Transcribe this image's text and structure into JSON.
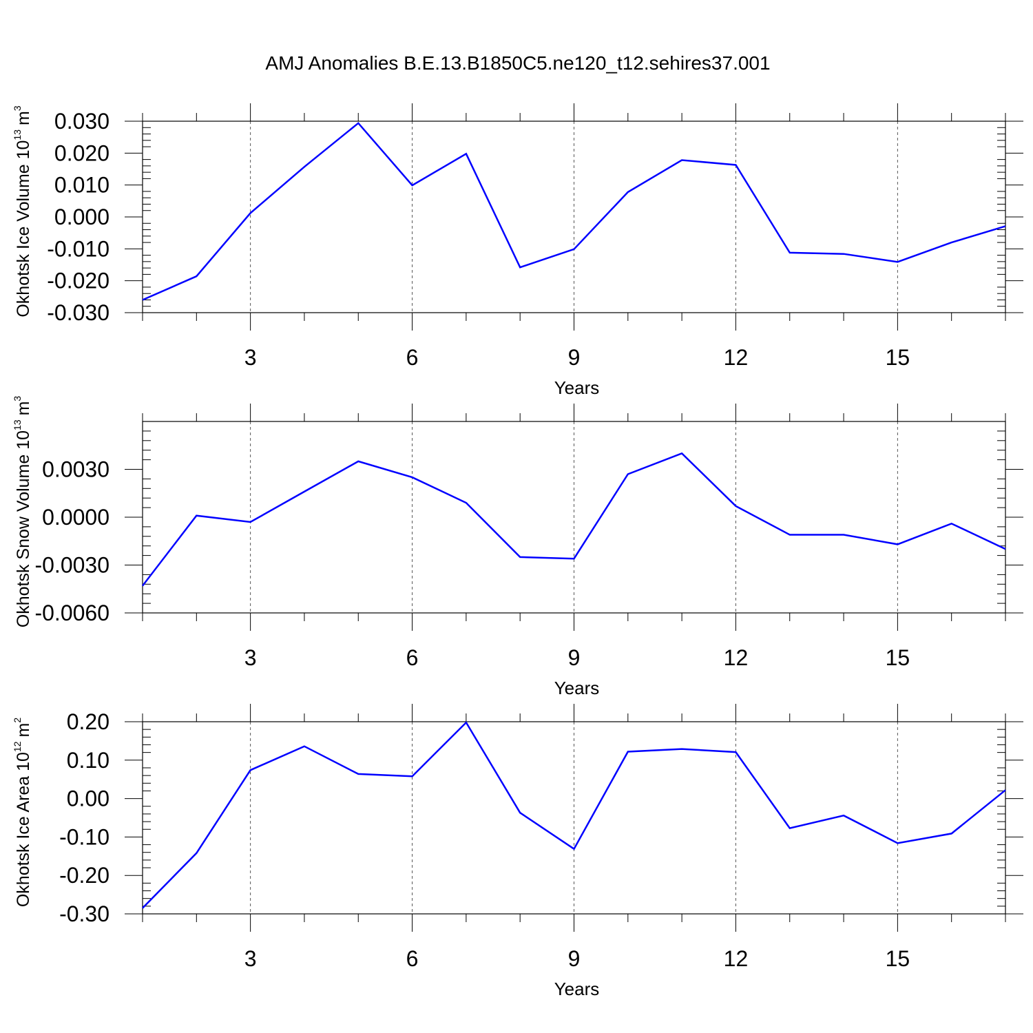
{
  "figure": {
    "title": "AMJ Anomalies B.E.13.B1850C5.ne120_t12.sehires37.001",
    "line_color": "#0000ff",
    "grid_color": "#555555"
  },
  "chart_data": [
    {
      "type": "line",
      "title": "AMJ Anomalies B.E.13.B1850C5.ne120_t12.sehires37.001",
      "xlabel": "Years",
      "ylabel": "Okhotsk Ice Volume 10",
      "ylabel_exp": "13",
      "ylabel_unit": "m",
      "ylabel_unit_exp": "3",
      "xlim": [
        1,
        17
      ],
      "ylim": [
        -0.03,
        0.03
      ],
      "x_ticks": [
        3,
        6,
        9,
        12,
        15
      ],
      "x_tick_labels": [
        "3",
        "6",
        "9",
        "12",
        "15"
      ],
      "y_ticks": [
        -0.03,
        -0.02,
        -0.01,
        0.0,
        0.01,
        0.02,
        0.03
      ],
      "y_tick_labels": [
        "-0.030",
        "-0.020",
        "-0.010",
        "0.000",
        "0.010",
        "0.020",
        "0.030"
      ],
      "grid": "vertical dashed",
      "series": [
        {
          "x": [
            1,
            2,
            3,
            4,
            5,
            6,
            7,
            8,
            9,
            10,
            11,
            12,
            13,
            14,
            15,
            16,
            17
          ],
          "values": [
            -0.026,
            -0.0186,
            0.0012,
            0.0157,
            0.0294,
            0.0099,
            0.0198,
            -0.0158,
            -0.0101,
            0.0078,
            0.0178,
            0.0163,
            -0.0112,
            -0.0116,
            -0.0141,
            -0.008,
            -0.0029
          ]
        }
      ]
    },
    {
      "type": "line",
      "xlabel": "Years",
      "ylabel": "Okhotsk Snow Volume 10",
      "ylabel_exp": "13",
      "ylabel_unit": "m",
      "ylabel_unit_exp": "3",
      "xlim": [
        1,
        17
      ],
      "ylim": [
        -0.006,
        0.006
      ],
      "x_ticks": [
        3,
        6,
        9,
        12,
        15
      ],
      "x_tick_labels": [
        "3",
        "6",
        "9",
        "12",
        "15"
      ],
      "y_ticks": [
        -0.006,
        -0.003,
        0.0,
        0.003
      ],
      "y_tick_labels": [
        "-0.0060",
        "-0.0030",
        "0.0000",
        "0.0030"
      ],
      "grid": "vertical dashed",
      "series": [
        {
          "x": [
            1,
            2,
            3,
            4,
            5,
            6,
            7,
            8,
            9,
            10,
            11,
            12,
            13,
            14,
            15,
            16,
            17
          ],
          "values": [
            -0.0043,
            0.0001,
            -0.0003,
            0.0016,
            0.0035,
            0.0025,
            0.0009,
            -0.0025,
            -0.0026,
            0.0027,
            0.004,
            0.0007,
            -0.0011,
            -0.0011,
            -0.0017,
            -0.0004,
            -0.002
          ]
        }
      ]
    },
    {
      "type": "line",
      "xlabel": "Years",
      "ylabel": "Okhotsk Ice Area 10",
      "ylabel_exp": "12",
      "ylabel_unit": "m",
      "ylabel_unit_exp": "2",
      "xlim": [
        1,
        17
      ],
      "ylim": [
        -0.3,
        0.2
      ],
      "x_ticks": [
        3,
        6,
        9,
        12,
        15
      ],
      "x_tick_labels": [
        "3",
        "6",
        "9",
        "12",
        "15"
      ],
      "y_ticks": [
        -0.3,
        -0.2,
        -0.1,
        0.0,
        0.1,
        0.2
      ],
      "y_tick_labels": [
        "-0.30",
        "-0.20",
        "-0.10",
        "0.00",
        "0.10",
        "0.20"
      ],
      "grid": "vertical dashed",
      "series": [
        {
          "x": [
            1,
            2,
            3,
            4,
            5,
            6,
            7,
            8,
            9,
            10,
            11,
            12,
            13,
            14,
            15,
            16,
            17
          ],
          "values": [
            -0.285,
            -0.142,
            0.074,
            0.136,
            0.064,
            0.058,
            0.198,
            -0.037,
            -0.131,
            0.122,
            0.129,
            0.121,
            -0.077,
            -0.044,
            -0.116,
            -0.091,
            0.022
          ]
        }
      ]
    }
  ]
}
